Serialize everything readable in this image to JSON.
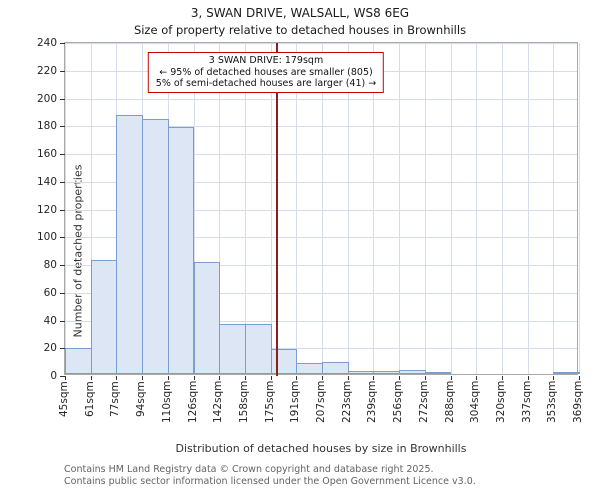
{
  "title": "3, SWAN DRIVE, WALSALL, WS8 6EG",
  "subtitle": "Size of property relative to detached houses in Brownhills",
  "chart_data": {
    "type": "bar",
    "title": "3, SWAN DRIVE, WALSALL, WS8 6EG",
    "subtitle": "Size of property relative to detached houses in Brownhills",
    "xlabel": "Distribution of detached houses by size in Brownhills",
    "ylabel": "Number of detached properties",
    "categories": [
      "45sqm",
      "61sqm",
      "77sqm",
      "94sqm",
      "110sqm",
      "126sqm",
      "142sqm",
      "158sqm",
      "175sqm",
      "191sqm",
      "207sqm",
      "223sqm",
      "239sqm",
      "256sqm",
      "272sqm",
      "288sqm",
      "304sqm",
      "320sqm",
      "337sqm",
      "353sqm",
      "369sqm"
    ],
    "bin_edges": [
      45,
      61,
      77,
      94,
      110,
      126,
      142,
      158,
      175,
      191,
      207,
      223,
      239,
      256,
      272,
      288,
      304,
      320,
      337,
      353,
      369
    ],
    "values": [
      19,
      82,
      187,
      184,
      178,
      81,
      36,
      36,
      18,
      8,
      9,
      2,
      2,
      3,
      1,
      0,
      0,
      0,
      0,
      1
    ],
    "ylim": [
      0,
      240
    ],
    "ytick_step": 20,
    "grid": true,
    "legend": "none",
    "grid_color": "#d6dcec",
    "bar_fill": "#dce6f5",
    "bar_edge": "#7c9dd0",
    "marker": {
      "value_sqm": 179,
      "color": "#8b1e1e"
    },
    "annotation": {
      "line1": "3 SWAN DRIVE: 179sqm",
      "line2": "← 95% of detached houses are smaller (805)",
      "line3": "5% of semi-detached houses are larger (41) →"
    }
  },
  "footer": {
    "line1": "Contains HM Land Registry data © Crown copyright and database right 2025.",
    "line2": "Contains public sector information licensed under the Open Government Licence v3.0."
  }
}
